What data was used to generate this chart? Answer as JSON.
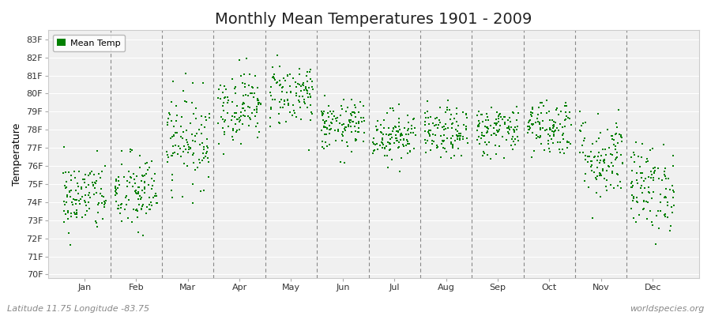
{
  "title": "Monthly Mean Temperatures 1901 - 2009",
  "ylabel": "Temperature",
  "xlabel_labels": [
    "Jan",
    "Feb",
    "Mar",
    "Apr",
    "May",
    "Jun",
    "Jul",
    "Aug",
    "Sep",
    "Oct",
    "Nov",
    "Dec"
  ],
  "ytick_labels": [
    "70F",
    "71F",
    "72F",
    "73F",
    "74F",
    "75F",
    "76F",
    "77F",
    "78F",
    "79F",
    "80F",
    "81F",
    "82F",
    "83F"
  ],
  "ytick_values": [
    70,
    71,
    72,
    73,
    74,
    75,
    76,
    77,
    78,
    79,
    80,
    81,
    82,
    83
  ],
  "ylim": [
    69.8,
    83.5
  ],
  "dot_color": "#008000",
  "dot_size": 2.5,
  "background_color": "#ffffff",
  "plot_bg_color": "#f0f0f0",
  "grid_color": "#ffffff",
  "dashed_line_color": "#888888",
  "legend_label": "Mean Temp",
  "footer_left": "Latitude 11.75 Longitude -83.75",
  "footer_right": "worldspecies.org",
  "title_fontsize": 14,
  "axis_label_fontsize": 9,
  "tick_fontsize": 8,
  "footer_fontsize": 8,
  "monthly_means": [
    74.3,
    74.5,
    77.5,
    79.3,
    80.0,
    78.2,
    77.7,
    77.8,
    78.0,
    78.2,
    76.5,
    74.8
  ],
  "monthly_stds": [
    1.0,
    1.1,
    1.3,
    1.0,
    0.9,
    0.7,
    0.7,
    0.7,
    0.7,
    0.8,
    1.2,
    1.2
  ],
  "n_years": 109,
  "seed": 42,
  "xlim": [
    0.3,
    12.9
  ]
}
